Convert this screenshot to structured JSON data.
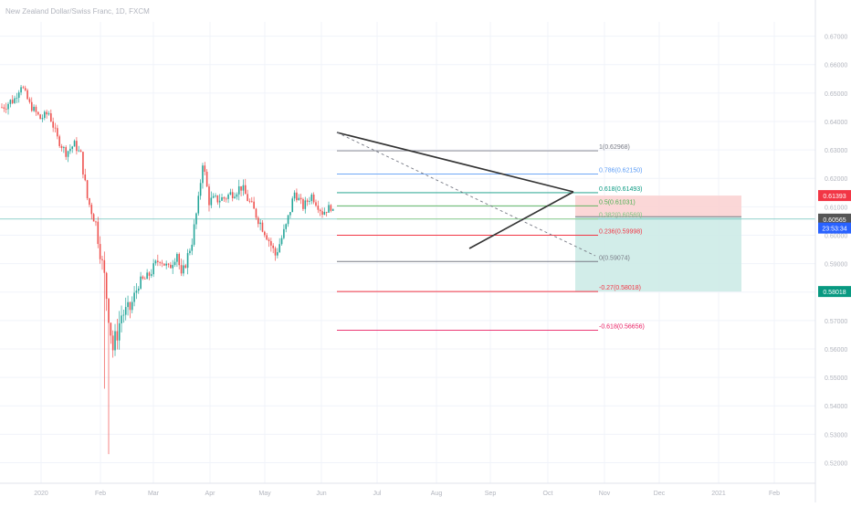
{
  "header": {
    "symbol_title": "New Zealand Dollar/Swiss Franc, 1D, FXCM"
  },
  "colors": {
    "up": "#26a69a",
    "down": "#ef5350",
    "grid": "#f0f3fa",
    "axis_text": "#b2b5be",
    "trend": "#333333",
    "stop_zone": "#fbd3d3",
    "target_zone": "#cdebe7",
    "price_line": "#26a69a"
  },
  "chart_data": {
    "type": "candlestick",
    "title": "New Zealand Dollar/Swiss Franc, 1D, FXCM",
    "ylim": [
      0.515,
      0.675
    ],
    "y_ticks": [
      "0.67000",
      "0.66000",
      "0.65000",
      "0.64000",
      "0.63000",
      "0.62000",
      "0.61000",
      "0.60000",
      "0.59000",
      "0.58000",
      "0.57000",
      "0.56000",
      "0.55000",
      "0.54000",
      "0.53000",
      "0.52000"
    ],
    "x_ticks": [
      "2020",
      "Feb",
      "Mar",
      "Apr",
      "May",
      "Jun",
      "Jul",
      "Aug",
      "Sep",
      "Oct",
      "Nov",
      "Dec",
      "2021",
      "Feb"
    ],
    "fib_levels": [
      {
        "label": "1(0.62968)",
        "value": 0.62968,
        "color": "#787b86"
      },
      {
        "label": "0.786(0.62150)",
        "value": 0.6215,
        "color": "#5b9cf6"
      },
      {
        "label": "0.618(0.61493)",
        "value": 0.61493,
        "color": "#089981"
      },
      {
        "label": "0.5(0.61031)",
        "value": 0.61031,
        "color": "#4caf50"
      },
      {
        "label": "0.382(0.60569)",
        "value": 0.60569,
        "color": "#81c784"
      },
      {
        "label": "0.236(0.59998)",
        "value": 0.59998,
        "color": "#f23645"
      },
      {
        "label": "0(0.59074)",
        "value": 0.59074,
        "color": "#787b86"
      },
      {
        "label": "-0.27(0.58018)",
        "value": 0.58018,
        "color": "#f23645"
      },
      {
        "label": "-0.618(0.56656)",
        "value": 0.56656,
        "color": "#e91e63"
      }
    ],
    "price_labels": [
      {
        "text": "0.61393",
        "value": 0.61393,
        "color": "#f23645"
      },
      {
        "text": "0.60565",
        "value": 0.60565,
        "color": "#555555"
      },
      {
        "text": "23:53:34",
        "value": 0.6025,
        "color": "#2962ff"
      },
      {
        "text": "0.58018",
        "value": 0.58018,
        "color": "#089981"
      }
    ],
    "current_price": 0.60565,
    "stop_level": 0.61393,
    "target_level": 0.58018,
    "entry_level": 0.6065,
    "segments": [
      {
        "from": 0,
        "to": 6,
        "start": 0.645,
        "end": 0.648,
        "vol": 0.004
      },
      {
        "from": 6,
        "to": 9,
        "start": 0.648,
        "end": 0.653,
        "vol": 0.003
      },
      {
        "from": 9,
        "to": 13,
        "start": 0.653,
        "end": 0.646,
        "vol": 0.003
      },
      {
        "from": 13,
        "to": 18,
        "start": 0.646,
        "end": 0.641,
        "vol": 0.003
      },
      {
        "from": 18,
        "to": 22,
        "start": 0.641,
        "end": 0.643,
        "vol": 0.003
      },
      {
        "from": 22,
        "to": 26,
        "start": 0.643,
        "end": 0.634,
        "vol": 0.003
      },
      {
        "from": 26,
        "to": 30,
        "start": 0.634,
        "end": 0.629,
        "vol": 0.003
      },
      {
        "from": 30,
        "to": 34,
        "start": 0.629,
        "end": 0.632,
        "vol": 0.003
      },
      {
        "from": 34,
        "to": 37,
        "start": 0.632,
        "end": 0.628,
        "vol": 0.003
      },
      {
        "from": 37,
        "to": 40,
        "start": 0.628,
        "end": 0.613,
        "vol": 0.004
      },
      {
        "from": 40,
        "to": 44,
        "start": 0.613,
        "end": 0.604,
        "vol": 0.004
      },
      {
        "from": 44,
        "to": 48,
        "start": 0.604,
        "end": 0.585,
        "vol": 0.006
      },
      {
        "from": 48,
        "to": 52,
        "start": 0.585,
        "end": 0.56,
        "vol": 0.008
      },
      {
        "from": 52,
        "to": 56,
        "start": 0.56,
        "end": 0.572,
        "vol": 0.008
      },
      {
        "from": 56,
        "to": 60,
        "start": 0.572,
        "end": 0.574,
        "vol": 0.006
      },
      {
        "from": 60,
        "to": 64,
        "start": 0.574,
        "end": 0.583,
        "vol": 0.005
      },
      {
        "from": 64,
        "to": 68,
        "start": 0.583,
        "end": 0.585,
        "vol": 0.004
      },
      {
        "from": 68,
        "to": 74,
        "start": 0.585,
        "end": 0.592,
        "vol": 0.004
      },
      {
        "from": 74,
        "to": 78,
        "start": 0.592,
        "end": 0.588,
        "vol": 0.004
      },
      {
        "from": 78,
        "to": 82,
        "start": 0.588,
        "end": 0.594,
        "vol": 0.004
      },
      {
        "from": 82,
        "to": 84,
        "start": 0.594,
        "end": 0.585,
        "vol": 0.004
      },
      {
        "from": 84,
        "to": 89,
        "start": 0.585,
        "end": 0.598,
        "vol": 0.004
      },
      {
        "from": 89,
        "to": 92,
        "start": 0.598,
        "end": 0.612,
        "vol": 0.004
      },
      {
        "from": 92,
        "to": 94,
        "start": 0.612,
        "end": 0.626,
        "vol": 0.004
      },
      {
        "from": 94,
        "to": 97,
        "start": 0.626,
        "end": 0.612,
        "vol": 0.004
      },
      {
        "from": 97,
        "to": 104,
        "start": 0.612,
        "end": 0.613,
        "vol": 0.004
      },
      {
        "from": 104,
        "to": 112,
        "start": 0.613,
        "end": 0.617,
        "vol": 0.004
      },
      {
        "from": 112,
        "to": 117,
        "start": 0.617,
        "end": 0.61,
        "vol": 0.004
      },
      {
        "from": 117,
        "to": 124,
        "start": 0.61,
        "end": 0.6,
        "vol": 0.004
      },
      {
        "from": 124,
        "to": 128,
        "start": 0.6,
        "end": 0.593,
        "vol": 0.004
      },
      {
        "from": 128,
        "to": 133,
        "start": 0.593,
        "end": 0.603,
        "vol": 0.004
      },
      {
        "from": 133,
        "to": 137,
        "start": 0.603,
        "end": 0.615,
        "vol": 0.004
      },
      {
        "from": 137,
        "to": 141,
        "start": 0.615,
        "end": 0.61,
        "vol": 0.003
      },
      {
        "from": 141,
        "to": 145,
        "start": 0.61,
        "end": 0.614,
        "vol": 0.003
      },
      {
        "from": 145,
        "to": 150,
        "start": 0.614,
        "end": 0.608,
        "vol": 0.003
      },
      {
        "from": 150,
        "to": 154,
        "start": 0.608,
        "end": 0.61,
        "vol": 0.003
      },
      {
        "from": 154,
        "to": 156,
        "start": 0.61,
        "end": 0.6055,
        "vol": 0.003
      }
    ]
  }
}
